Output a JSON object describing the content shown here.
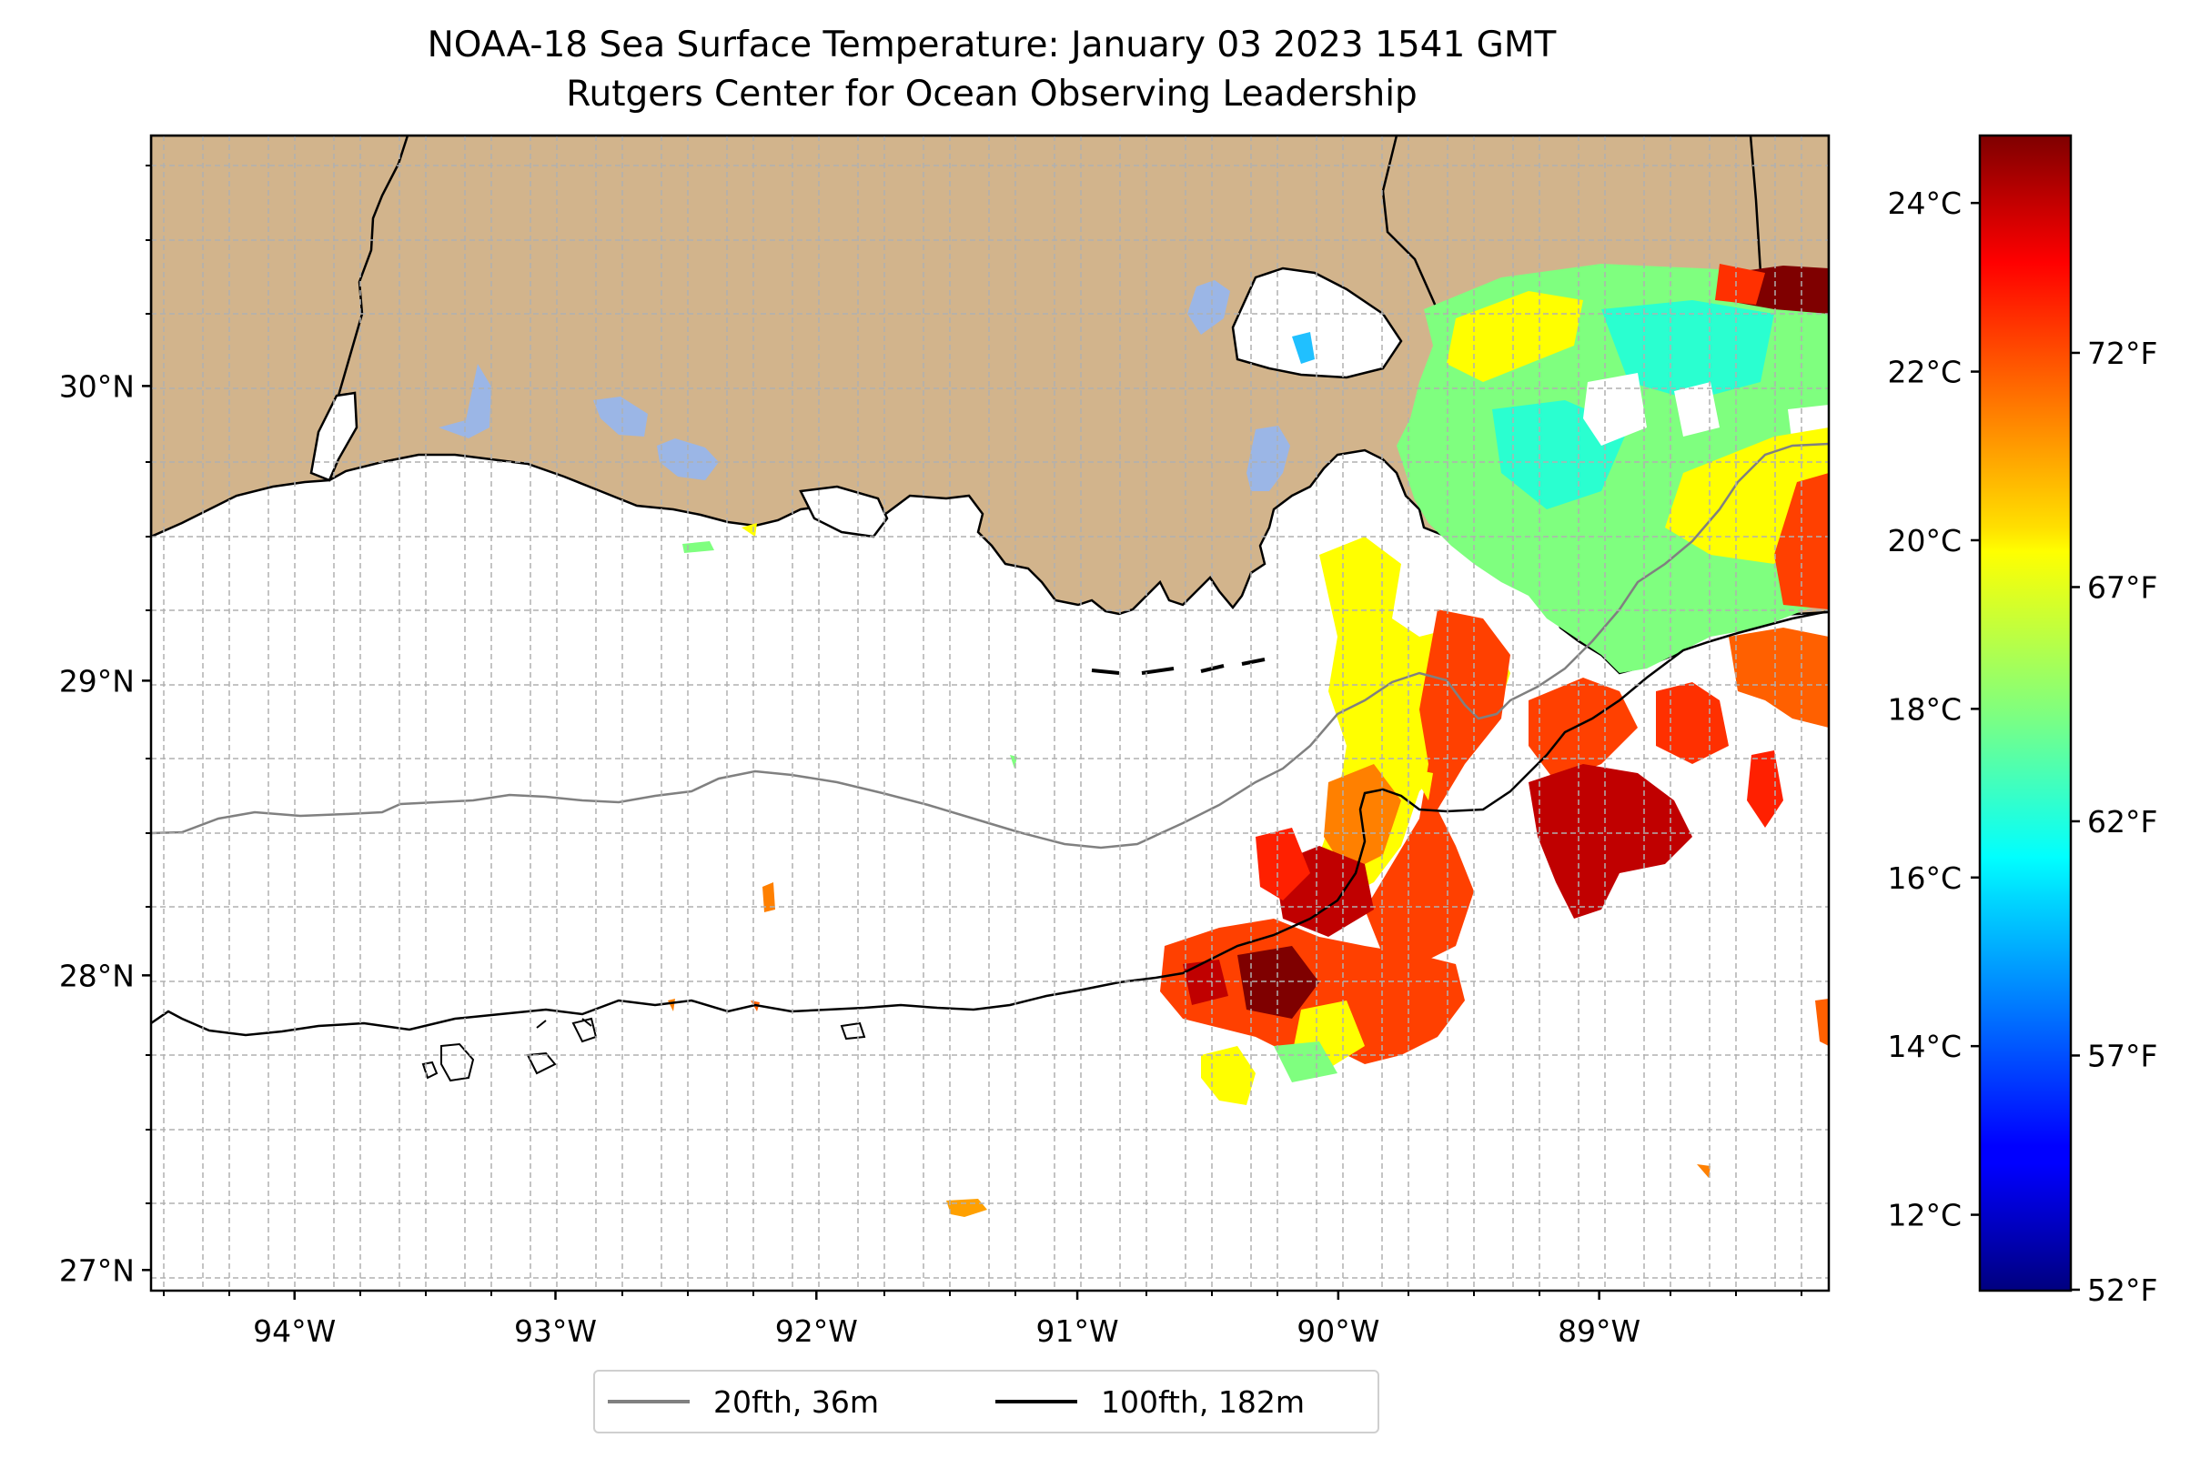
{
  "title": {
    "line1": "NOAA-18 Sea Surface Temperature: January 03 2023 1541 GMT",
    "line2": "Rutgers Center for Ocean Observing Leadership"
  },
  "map": {
    "lon_range": [
      -94.55,
      -88.12
    ],
    "lat_range": [
      26.93,
      30.85
    ],
    "lon_ticks": [
      {
        "value": -94,
        "label": "94°W"
      },
      {
        "value": -93,
        "label": "93°W"
      },
      {
        "value": -92,
        "label": "92°W"
      },
      {
        "value": -91,
        "label": "91°W"
      },
      {
        "value": -90,
        "label": "90°W"
      },
      {
        "value": -89,
        "label": "89°W"
      }
    ],
    "lat_ticks": [
      {
        "value": 27,
        "label": "27°N"
      },
      {
        "value": 28,
        "label": "28°N"
      },
      {
        "value": 29,
        "label": "29°N"
      },
      {
        "value": 30,
        "label": "30°N"
      }
    ],
    "gridlines": true,
    "colors": {
      "land": "#d2b48c",
      "lakes": "#9bb6e6",
      "ocean": "#ffffff",
      "grid": "#b0b0b0"
    }
  },
  "colorbar": {
    "colormap": "jet",
    "range_celsius": [
      11.1,
      24.8
    ],
    "celsius_ticks": [
      {
        "value": 12,
        "label": "12°C"
      },
      {
        "value": 14,
        "label": "14°C"
      },
      {
        "value": 16,
        "label": "16°C"
      },
      {
        "value": 18,
        "label": "18°C"
      },
      {
        "value": 20,
        "label": "20°C"
      },
      {
        "value": 22,
        "label": "22°C"
      },
      {
        "value": 24,
        "label": "24°C"
      }
    ],
    "fahrenheit_ticks": [
      {
        "value": 52,
        "label": "52°F"
      },
      {
        "value": 57,
        "label": "57°F"
      },
      {
        "value": 62,
        "label": "62°F"
      },
      {
        "value": 67,
        "label": "67°F"
      },
      {
        "value": 72,
        "label": "72°F"
      }
    ]
  },
  "legend": {
    "items": [
      {
        "label": "20fth, 36m",
        "color": "#808080"
      },
      {
        "label": "100fth, 182m",
        "color": "#000000"
      }
    ]
  }
}
